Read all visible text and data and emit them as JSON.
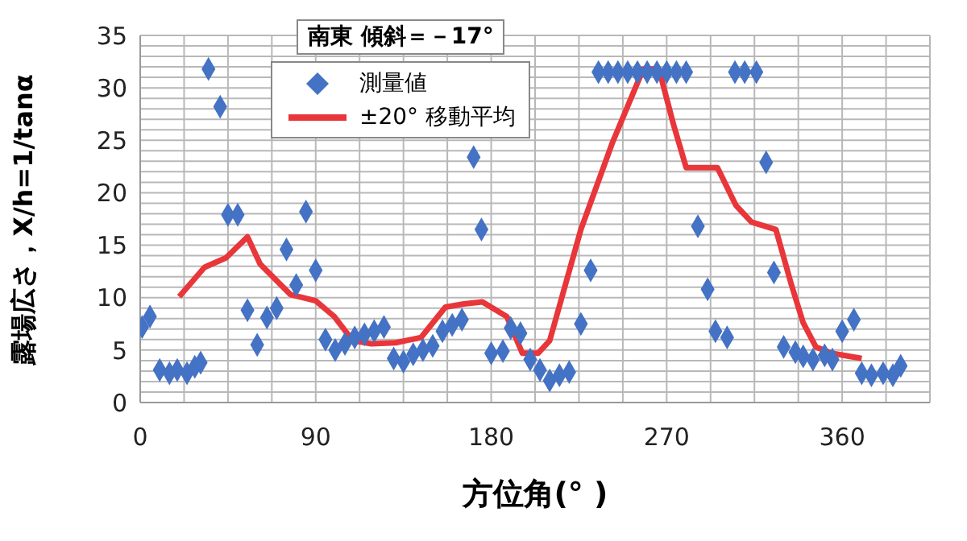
{
  "chart_data": {
    "type": "scatter",
    "title": "南東 傾斜＝－17°",
    "xlabel": "方位角(° )",
    "ylabel": "露場広さ，X/h=1/tanα",
    "xlim": [
      0,
      405
    ],
    "ylim": [
      0,
      35
    ],
    "xticks": [
      0,
      {
        "value": 22.5,
        "label": null
      },
      {
        "value": 45,
        "label": null
      },
      {
        "value": 67.5,
        "label": null
      },
      90,
      {
        "value": 112.5,
        "label": null
      },
      {
        "value": 135,
        "label": null
      },
      {
        "value": 157.5,
        "label": null
      },
      180,
      {
        "value": 202.5,
        "label": null
      },
      {
        "value": 225,
        "label": null
      },
      {
        "value": 247.5,
        "label": null
      },
      270,
      {
        "value": 292.5,
        "label": null
      },
      {
        "value": 315,
        "label": null
      },
      {
        "value": 337.5,
        "label": null
      },
      360,
      {
        "value": 382.5,
        "label": null
      },
      {
        "value": 405,
        "label": null
      }
    ],
    "yticks": [
      0,
      {
        "value": 1,
        "label": null
      },
      {
        "value": 2,
        "label": null
      },
      {
        "value": 3,
        "label": null
      },
      {
        "value": 4,
        "label": null
      },
      5,
      {
        "value": 6,
        "label": null
      },
      {
        "value": 7,
        "label": null
      },
      {
        "value": 8,
        "label": null
      },
      {
        "value": 9,
        "label": null
      },
      10,
      {
        "value": 11,
        "label": null
      },
      {
        "value": 12,
        "label": null
      },
      {
        "value": 13,
        "label": null
      },
      {
        "value": 14,
        "label": null
      },
      15,
      {
        "value": 16,
        "label": null
      },
      {
        "value": 17,
        "label": null
      },
      {
        "value": 18,
        "label": null
      },
      {
        "value": 19,
        "label": null
      },
      20,
      {
        "value": 21,
        "label": null
      },
      {
        "value": 22,
        "label": null
      },
      {
        "value": 23,
        "label": null
      },
      {
        "value": 24,
        "label": null
      },
      25,
      {
        "value": 26,
        "label": null
      },
      {
        "value": 27,
        "label": null
      },
      {
        "value": 28,
        "label": null
      },
      {
        "value": 29,
        "label": null
      },
      30,
      {
        "value": 31,
        "label": null
      },
      {
        "value": 32,
        "label": null
      },
      {
        "value": 33,
        "label": null
      },
      {
        "value": 34,
        "label": null
      },
      35
    ],
    "grid": true,
    "legend": "top",
    "series": [
      {
        "name": "測量値",
        "marker": "diamond",
        "color": "#4472c4",
        "x": [
          1,
          5,
          10,
          15,
          19,
          24,
          28,
          31,
          35,
          41,
          45,
          50,
          55,
          60,
          65,
          70,
          75,
          80,
          85,
          90,
          95,
          100,
          105,
          110,
          115,
          120,
          125,
          130,
          135,
          140,
          145,
          150,
          155,
          160,
          165,
          171,
          175,
          180,
          186,
          190,
          195,
          200,
          205,
          210,
          215,
          220,
          226,
          231,
          235,
          240,
          245,
          250,
          255,
          260,
          265,
          270,
          275,
          280,
          286,
          291,
          295,
          301,
          305,
          310,
          316,
          321,
          325,
          330,
          336,
          340,
          345,
          351,
          355,
          360,
          366,
          370,
          375,
          381,
          386,
          390
        ],
        "values": [
          7.2,
          8.2,
          3.1,
          2.8,
          3.1,
          2.8,
          3.4,
          3.8,
          31.8,
          28.2,
          17.9,
          17.9,
          8.8,
          5.5,
          8.1,
          9,
          14.6,
          11.2,
          18.2,
          12.6,
          6,
          5,
          5.6,
          6.2,
          6.5,
          6.8,
          7.2,
          4.2,
          3.9,
          4.6,
          5,
          5.4,
          6.8,
          7.4,
          7.9,
          23.4,
          16.5,
          4.7,
          4.9,
          7.1,
          6.6,
          4.1,
          3.1,
          2.1,
          2.6,
          2.9,
          7.5,
          12.6,
          31.5,
          31.5,
          31.5,
          31.5,
          31.5,
          31.5,
          31.5,
          31.5,
          31.5,
          31.5,
          16.8,
          10.8,
          6.8,
          6.2,
          31.5,
          31.5,
          31.5,
          22.9,
          12.4,
          5.3,
          4.8,
          4.4,
          4.1,
          4.5,
          4.1,
          6.8,
          7.9,
          2.8,
          2.6,
          2.8,
          2.6,
          3.5
        ]
      },
      {
        "name": "±20°  移動平均",
        "type": "line",
        "marker": "none",
        "line_style": "solid",
        "color": "#e8363a",
        "x": [
          20,
          33,
          44,
          55,
          61.5,
          69,
          77,
          90,
          99.5,
          109,
          118.5,
          131,
          144,
          156.5,
          166,
          175.5,
          188,
          196,
          204,
          210,
          226,
          242,
          258,
          266,
          273.5,
          280,
          296,
          305.5,
          313.5,
          326,
          334,
          340,
          346.5,
          354.5,
          370
        ],
        "values": [
          10.1,
          12.9,
          13.8,
          15.8,
          13.2,
          11.8,
          10.3,
          9.7,
          8.2,
          5.9,
          5.6,
          5.7,
          6.2,
          9.1,
          9.4,
          9.6,
          8.2,
          4.7,
          4.7,
          5.9,
          16.5,
          24.7,
          31.8,
          31.8,
          26.5,
          22.4,
          22.4,
          18.8,
          17.2,
          16.5,
          11.2,
          7.6,
          5.3,
          4.7,
          4.2
        ]
      }
    ]
  }
}
